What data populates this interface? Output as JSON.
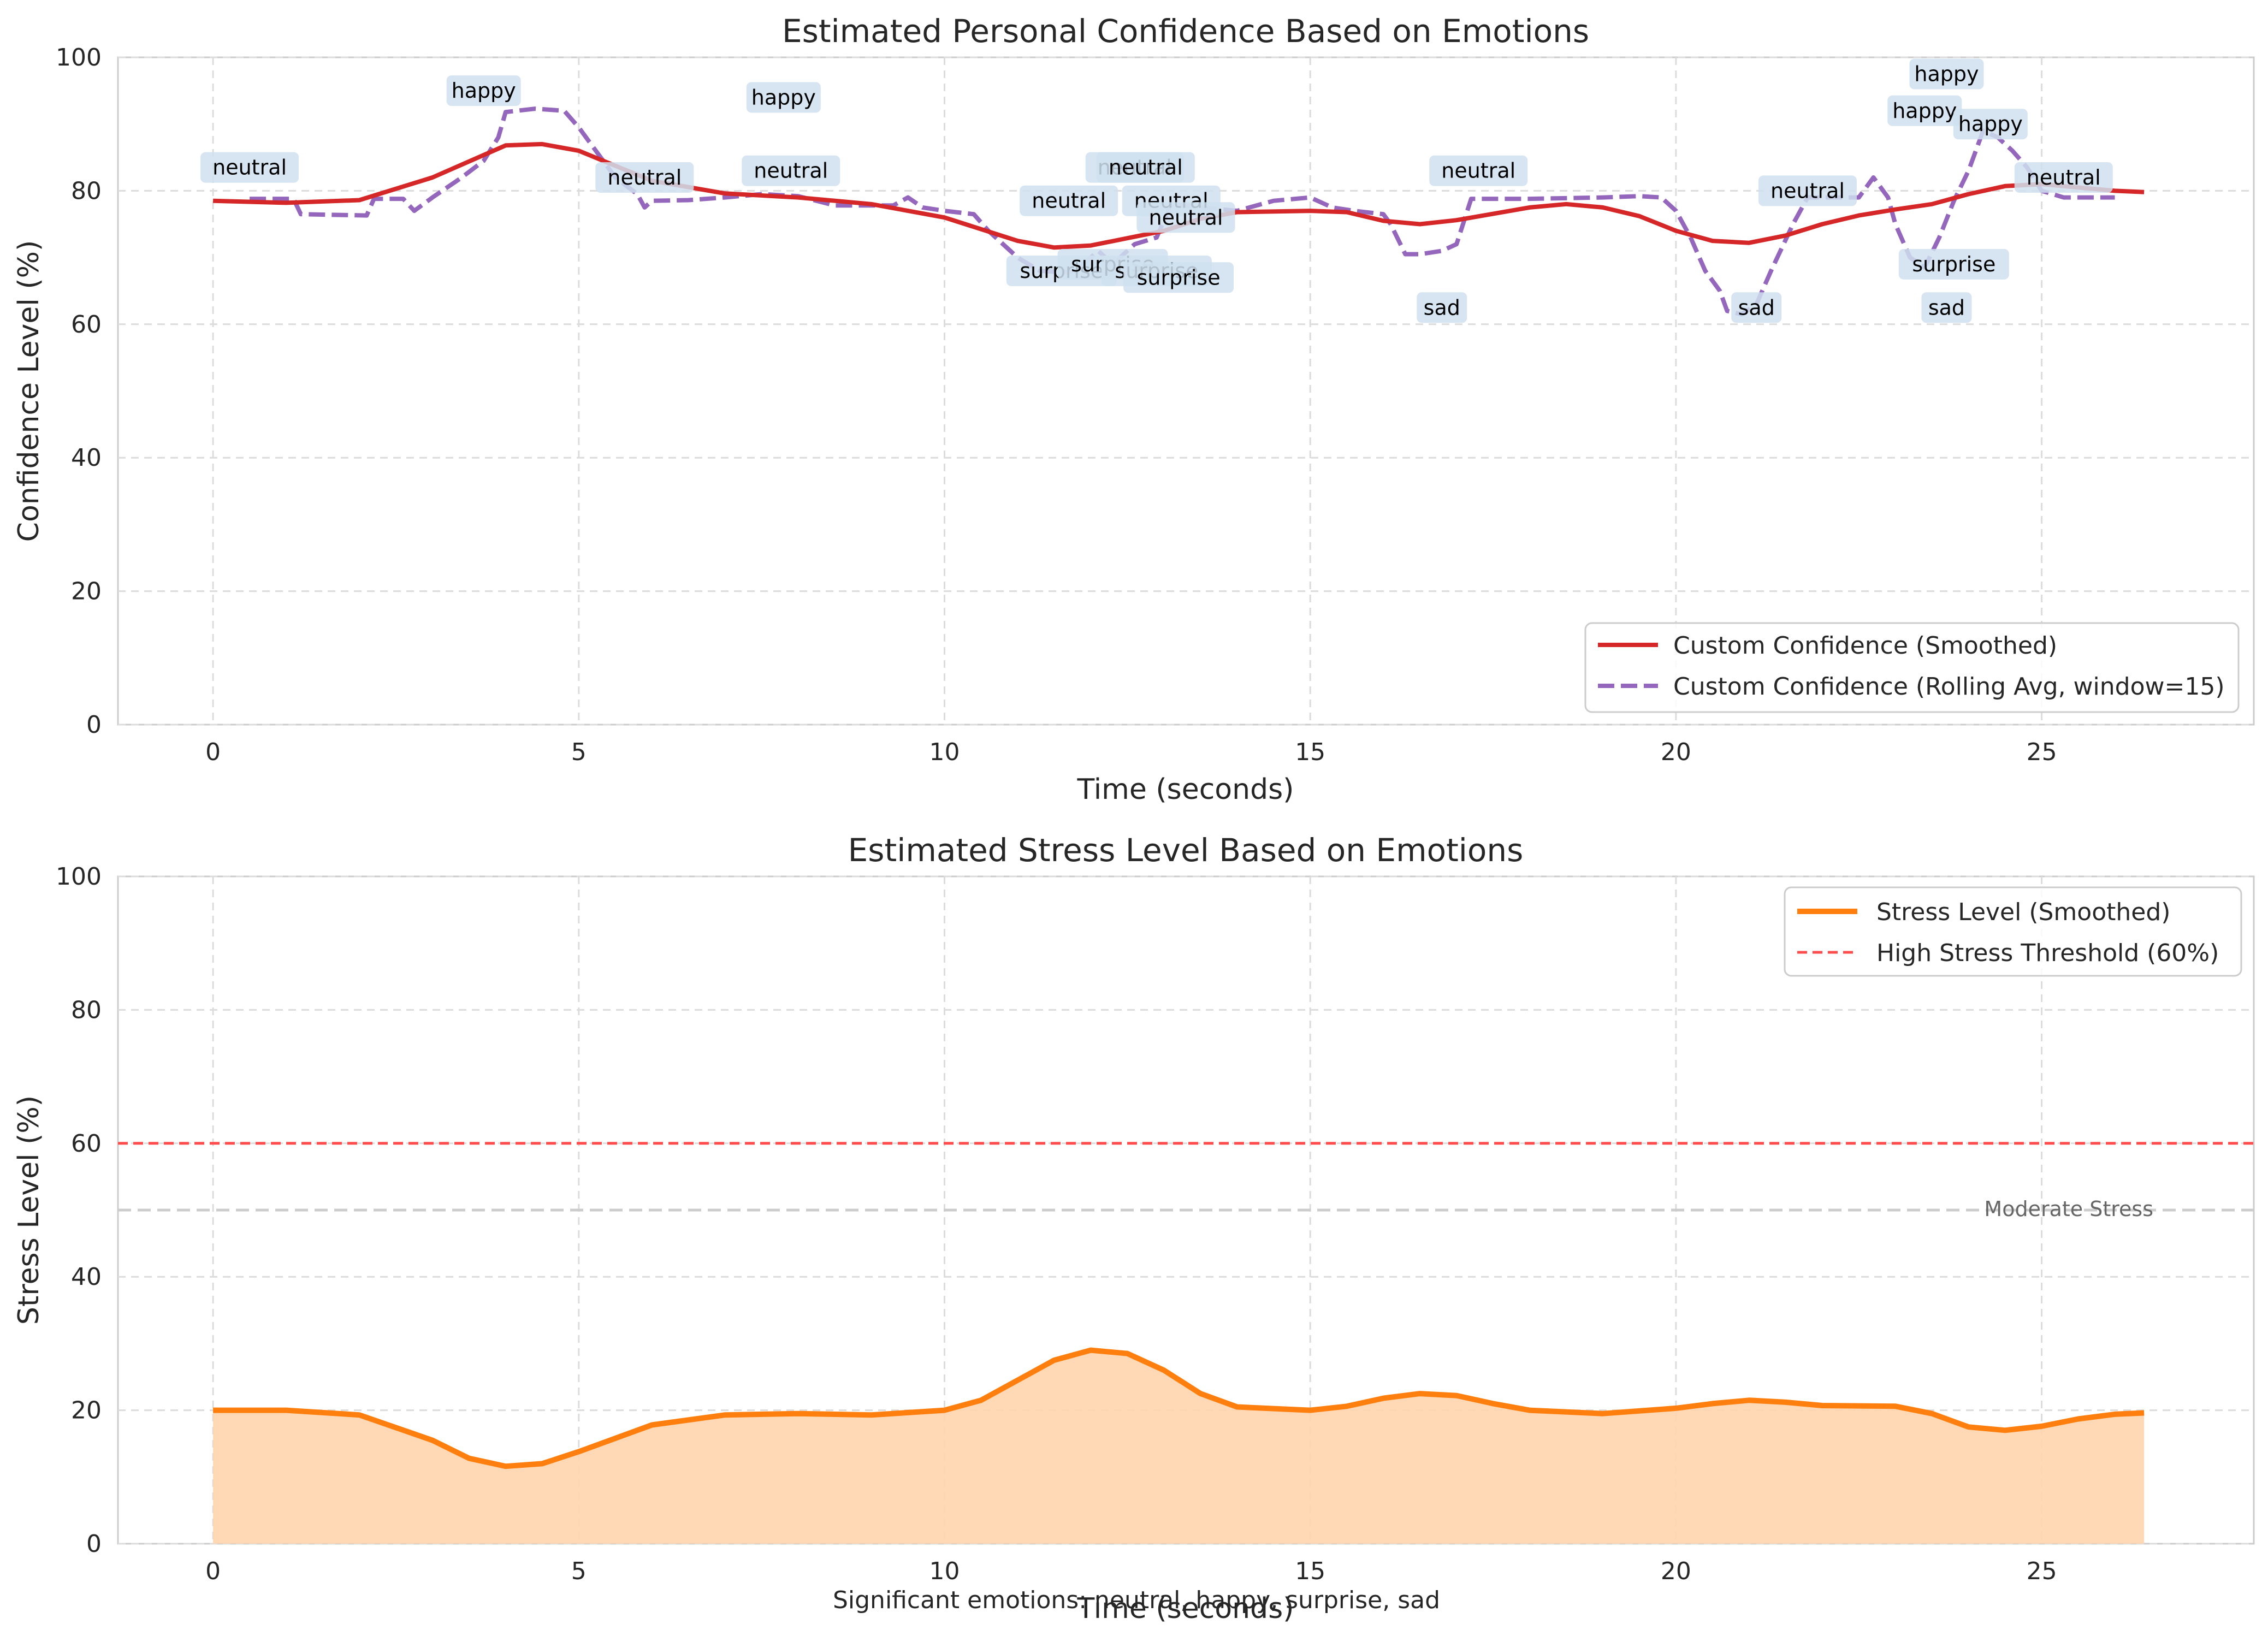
{
  "footer_text": "Significant emotions: neutral, happy, surprise, sad",
  "colors": {
    "smoothed_confidence": "#d62728",
    "rolling_avg": "#9467bd",
    "stress": "#ff7f0e",
    "stress_fill": "#ffd5ae",
    "threshold": "#ff4d4d",
    "moderate": "#cccccc",
    "emotion_label_bg": "#cfe0ee",
    "grid": "#dcdcdc",
    "axes_edge": "#cccccc"
  },
  "chart_data": [
    {
      "type": "line",
      "title": "Estimated Personal Confidence Based on Emotions",
      "xlabel": "Time (seconds)",
      "ylabel": "Confidence Level (%)",
      "xlim": [
        -1.3,
        27.9
      ],
      "ylim": [
        0,
        100
      ],
      "xticks": [
        0,
        5,
        10,
        15,
        20,
        25
      ],
      "yticks": [
        0,
        20,
        40,
        60,
        80,
        100
      ],
      "grid": true,
      "legend_position": "lower-right",
      "series": [
        {
          "name": "Custom Confidence (Smoothed)",
          "style": "solid",
          "points": [
            [
              0,
              78.5
            ],
            [
              1,
              78.2
            ],
            [
              2,
              78.6
            ],
            [
              3,
              82
            ],
            [
              4,
              86.8
            ],
            [
              4.5,
              87
            ],
            [
              5,
              86
            ],
            [
              6,
              81.5
            ],
            [
              7,
              79.6
            ],
            [
              8,
              79
            ],
            [
              9,
              78
            ],
            [
              10,
              76
            ],
            [
              11,
              72.5
            ],
            [
              11.5,
              71.5
            ],
            [
              12,
              71.8
            ],
            [
              13,
              74
            ],
            [
              13.5,
              75.8
            ],
            [
              14,
              76.8
            ],
            [
              15,
              77
            ],
            [
              15.5,
              76.8
            ],
            [
              16,
              75.5
            ],
            [
              16.5,
              75
            ],
            [
              17,
              75.6
            ],
            [
              18,
              77.5
            ],
            [
              18.5,
              78
            ],
            [
              19,
              77.5
            ],
            [
              19.5,
              76.2
            ],
            [
              20,
              74
            ],
            [
              20.5,
              72.5
            ],
            [
              21,
              72.2
            ],
            [
              21.5,
              73.3
            ],
            [
              22,
              75
            ],
            [
              22.5,
              76.3
            ],
            [
              23,
              77.2
            ],
            [
              23.5,
              78
            ],
            [
              24,
              79.5
            ],
            [
              24.5,
              80.7
            ],
            [
              25,
              81
            ],
            [
              25.5,
              80.5
            ],
            [
              26,
              80
            ],
            [
              26.4,
              79.8
            ]
          ]
        },
        {
          "name": "Custom Confidence (Rolling Avg, window=15)",
          "style": "dashed",
          "points": [
            [
              0.5,
              78.8
            ],
            [
              1.1,
              78.8
            ],
            [
              1.2,
              76.5
            ],
            [
              2.1,
              76.3
            ],
            [
              2.2,
              78.8
            ],
            [
              2.6,
              78.8
            ],
            [
              2.75,
              77
            ],
            [
              3,
              79
            ],
            [
              3.4,
              82
            ],
            [
              3.7,
              84.5
            ],
            [
              3.9,
              88
            ],
            [
              4,
              91.8
            ],
            [
              4.4,
              92.3
            ],
            [
              4.8,
              92
            ],
            [
              5,
              89.5
            ],
            [
              5.5,
              82
            ],
            [
              5.8,
              79.5
            ],
            [
              5.9,
              77.5
            ],
            [
              6,
              78.5
            ],
            [
              6.5,
              78.6
            ],
            [
              7,
              79
            ],
            [
              7.5,
              79.5
            ],
            [
              8,
              79.2
            ],
            [
              8.5,
              77.8
            ],
            [
              9.3,
              77.8
            ],
            [
              9.5,
              79
            ],
            [
              9.7,
              77.5
            ],
            [
              10,
              77
            ],
            [
              10.4,
              76.5
            ],
            [
              10.6,
              74
            ],
            [
              11,
              70
            ],
            [
              11.3,
              68
            ],
            [
              11.6,
              67.8
            ],
            [
              11.8,
              68
            ],
            [
              12,
              70
            ],
            [
              12.1,
              71
            ],
            [
              12.3,
              69
            ],
            [
              12.6,
              72
            ],
            [
              12.9,
              73
            ],
            [
              13.1,
              78
            ],
            [
              13.5,
              77.5
            ],
            [
              14,
              77
            ],
            [
              14.5,
              78.5
            ],
            [
              15,
              79
            ],
            [
              15.3,
              77.5
            ],
            [
              15.6,
              77
            ],
            [
              16,
              76.5
            ],
            [
              16.1,
              75
            ],
            [
              16.3,
              70.5
            ],
            [
              16.5,
              70.5
            ],
            [
              16.8,
              71
            ],
            [
              17,
              72
            ],
            [
              17.2,
              78.8
            ],
            [
              18,
              78.8
            ],
            [
              19,
              79
            ],
            [
              19.5,
              79.2
            ],
            [
              19.8,
              79
            ],
            [
              20,
              77
            ],
            [
              20.2,
              73
            ],
            [
              20.4,
              68
            ],
            [
              20.6,
              65
            ],
            [
              20.7,
              62
            ],
            [
              20.9,
              61.5
            ],
            [
              21.1,
              63
            ],
            [
              21.3,
              68
            ],
            [
              21.6,
              75
            ],
            [
              21.8,
              79
            ],
            [
              22.5,
              79
            ],
            [
              22.7,
              82
            ],
            [
              22.9,
              79
            ],
            [
              23,
              75
            ],
            [
              23.2,
              70
            ],
            [
              23.4,
              68.5
            ],
            [
              23.6,
              73
            ],
            [
              23.8,
              78.5
            ],
            [
              24,
              83
            ],
            [
              24.2,
              89
            ],
            [
              24.4,
              88
            ],
            [
              24.6,
              86
            ],
            [
              24.8,
              83.5
            ],
            [
              25,
              80
            ],
            [
              25.3,
              79
            ],
            [
              25.6,
              79
            ],
            [
              26,
              79
            ]
          ]
        }
      ],
      "emotion_labels": [
        {
          "x": 0.5,
          "y": 83.5,
          "text": "neutral"
        },
        {
          "x": 3.7,
          "y": 95,
          "text": "happy"
        },
        {
          "x": 5.9,
          "y": 82,
          "text": "neutral"
        },
        {
          "x": 7.8,
          "y": 94,
          "text": "happy"
        },
        {
          "x": 7.9,
          "y": 83,
          "text": "neutral"
        },
        {
          "x": 11.7,
          "y": 78.5,
          "text": "neutral"
        },
        {
          "x": 12.6,
          "y": 83.5,
          "text": "neutral"
        },
        {
          "x": 12.75,
          "y": 83.5,
          "text": "neutral"
        },
        {
          "x": 13.1,
          "y": 78.5,
          "text": "neutral"
        },
        {
          "x": 13.3,
          "y": 76,
          "text": "neutral"
        },
        {
          "x": 11.6,
          "y": 68,
          "text": "surprise"
        },
        {
          "x": 12.3,
          "y": 69,
          "text": "surprise"
        },
        {
          "x": 12.9,
          "y": 68,
          "text": "surprise"
        },
        {
          "x": 13.2,
          "y": 67,
          "text": "surprise"
        },
        {
          "x": 16.8,
          "y": 62.5,
          "text": "sad"
        },
        {
          "x": 17.3,
          "y": 83,
          "text": "neutral"
        },
        {
          "x": 21.1,
          "y": 62.5,
          "text": "sad"
        },
        {
          "x": 21.8,
          "y": 80,
          "text": "neutral"
        },
        {
          "x": 23.4,
          "y": 92,
          "text": "happy"
        },
        {
          "x": 23.7,
          "y": 97.5,
          "text": "happy"
        },
        {
          "x": 23.8,
          "y": 69,
          "text": "surprise"
        },
        {
          "x": 23.7,
          "y": 62.5,
          "text": "sad"
        },
        {
          "x": 24.3,
          "y": 90,
          "text": "happy"
        },
        {
          "x": 25.3,
          "y": 82,
          "text": "neutral"
        }
      ]
    },
    {
      "type": "area",
      "title": "Estimated Stress Level Based on Emotions",
      "xlabel": "Time (seconds)",
      "ylabel": "Stress Level (%)",
      "xlim": [
        -1.3,
        27.9
      ],
      "ylim": [
        0,
        100
      ],
      "xticks": [
        0,
        5,
        10,
        15,
        20,
        25
      ],
      "yticks": [
        0,
        20,
        40,
        60,
        80,
        100
      ],
      "grid": true,
      "legend_position": "upper-right",
      "series": [
        {
          "name": "Stress Level (Smoothed)",
          "style": "solid-filled",
          "points": [
            [
              0,
              20
            ],
            [
              1,
              20
            ],
            [
              2,
              19.3
            ],
            [
              3,
              15.5
            ],
            [
              3.5,
              12.8
            ],
            [
              4,
              11.6
            ],
            [
              4.5,
              12
            ],
            [
              5,
              13.8
            ],
            [
              6,
              17.8
            ],
            [
              7,
              19.3
            ],
            [
              8,
              19.5
            ],
            [
              9,
              19.3
            ],
            [
              10,
              20
            ],
            [
              10.5,
              21.5
            ],
            [
              11,
              24.5
            ],
            [
              11.5,
              27.5
            ],
            [
              12,
              29
            ],
            [
              12.5,
              28.5
            ],
            [
              13,
              26
            ],
            [
              13.5,
              22.5
            ],
            [
              14,
              20.5
            ],
            [
              15,
              20
            ],
            [
              15.5,
              20.6
            ],
            [
              16,
              21.8
            ],
            [
              16.5,
              22.5
            ],
            [
              17,
              22.2
            ],
            [
              17.5,
              21
            ],
            [
              18,
              20
            ],
            [
              19,
              19.5
            ],
            [
              20,
              20.3
            ],
            [
              20.5,
              21
            ],
            [
              21,
              21.5
            ],
            [
              21.5,
              21.2
            ],
            [
              22,
              20.7
            ],
            [
              23,
              20.6
            ],
            [
              23.5,
              19.5
            ],
            [
              24,
              17.5
            ],
            [
              24.5,
              17
            ],
            [
              25,
              17.6
            ],
            [
              25.5,
              18.7
            ],
            [
              26,
              19.4
            ],
            [
              26.4,
              19.6
            ]
          ]
        },
        {
          "name": "High Stress Threshold (60%)",
          "style": "dashed",
          "y": 60
        }
      ],
      "reference_lines": [
        {
          "y": 50,
          "label": "Moderate Stress"
        }
      ]
    }
  ]
}
